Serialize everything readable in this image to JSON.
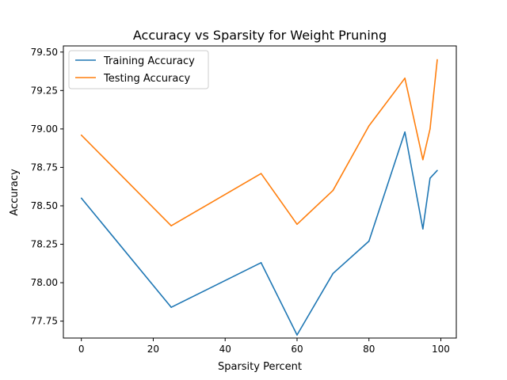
{
  "chart_data": {
    "type": "line",
    "title": "Accuracy vs Sparsity for Weight Pruning",
    "xlabel": "Sparsity Percent",
    "ylabel": "Accuracy",
    "xlim": [
      -5,
      104.3
    ],
    "ylim": [
      77.64,
      79.54
    ],
    "xticks": [
      0,
      20,
      40,
      60,
      80,
      100
    ],
    "xtick_labels": [
      "0",
      "20",
      "40",
      "60",
      "80",
      "100"
    ],
    "yticks": [
      77.75,
      78.0,
      78.25,
      78.5,
      78.75,
      79.0,
      79.25,
      79.5
    ],
    "ytick_labels": [
      "77.75",
      "78.00",
      "78.25",
      "78.50",
      "78.75",
      "79.00",
      "79.25",
      "79.50"
    ],
    "grid": false,
    "legend_position": "top-left",
    "x": [
      0,
      25,
      50,
      60,
      70,
      80,
      90,
      95,
      97,
      99
    ],
    "series": [
      {
        "name": "Training Accuracy",
        "color": "#1f77b4",
        "values": [
          78.55,
          77.84,
          78.13,
          77.66,
          78.06,
          78.27,
          78.98,
          78.35,
          78.68,
          78.73
        ]
      },
      {
        "name": "Testing Accuracy",
        "color": "#ff7f0e",
        "values": [
          78.96,
          78.37,
          78.71,
          78.38,
          78.6,
          79.02,
          79.33,
          78.8,
          79.0,
          79.45
        ]
      }
    ]
  }
}
